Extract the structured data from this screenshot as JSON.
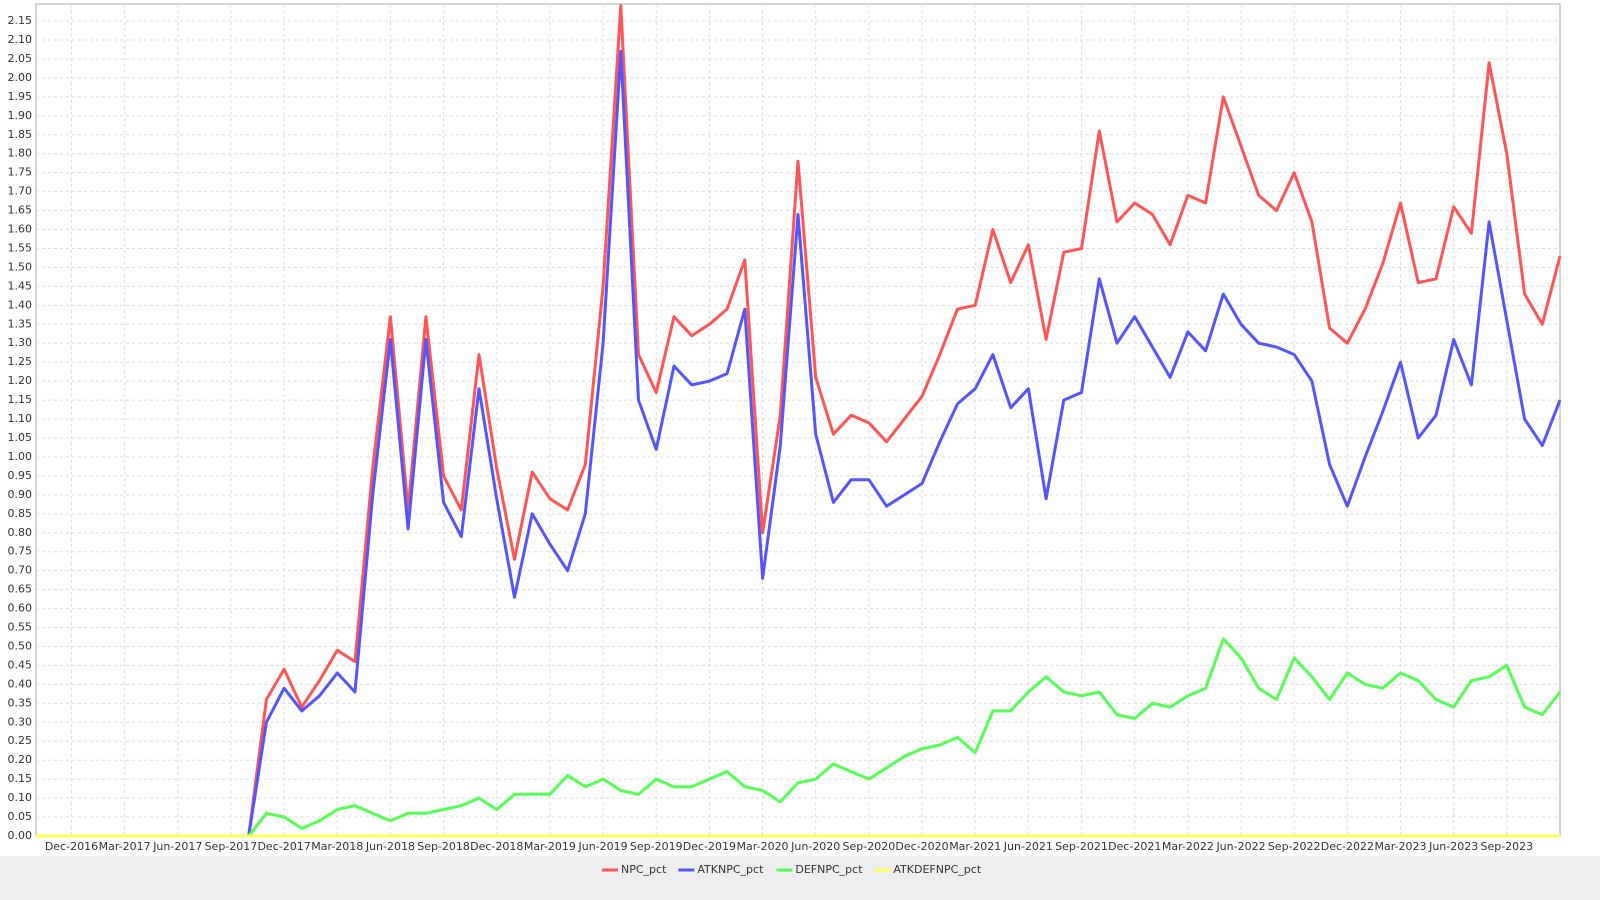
{
  "chart_data": {
    "type": "line",
    "categories": [
      null,
      null,
      "Dec-2016",
      null,
      null,
      "Mar-2017",
      null,
      null,
      "Jun-2017",
      null,
      null,
      "Sep-2017",
      null,
      null,
      "Dec-2017",
      null,
      null,
      "Mar-2018",
      null,
      null,
      "Jun-2018",
      null,
      null,
      "Sep-2018",
      null,
      null,
      "Dec-2018",
      null,
      null,
      "Mar-2019",
      null,
      null,
      "Jun-2019",
      null,
      null,
      "Sep-2019",
      null,
      null,
      "Dec-2019",
      null,
      null,
      "Mar-2020",
      null,
      null,
      "Jun-2020",
      null,
      null,
      "Sep-2020",
      null,
      null,
      "Dec-2020",
      null,
      null,
      "Mar-2021",
      null,
      null,
      "Jun-2021",
      null,
      null,
      "Sep-2021",
      null,
      null,
      "Dec-2021",
      null,
      null,
      "Mar-2022",
      null,
      null,
      "Jun-2022",
      null,
      null,
      "Sep-2022",
      null,
      null,
      "Dec-2022",
      null,
      null,
      "Mar-2023",
      null,
      null,
      "Jun-2023",
      null,
      null,
      "Sep-2023",
      null,
      null,
      null
    ],
    "series": [
      {
        "name": "NPC_pct",
        "color": "#ff5555",
        "values": [
          0,
          0,
          0,
          0,
          0,
          0,
          0,
          0,
          0,
          0,
          0,
          0,
          0,
          0.36,
          0.44,
          0.34,
          0.41,
          0.49,
          0.46,
          0.97,
          1.37,
          0.86,
          1.37,
          0.95,
          0.86,
          1.27,
          0.97,
          0.73,
          0.96,
          0.89,
          0.86,
          0.98,
          1.45,
          2.19,
          1.27,
          1.17,
          1.37,
          1.32,
          1.35,
          1.39,
          1.52,
          0.8,
          1.11,
          1.78,
          1.21,
          1.06,
          1.11,
          1.09,
          1.04,
          1.1,
          1.16,
          1.27,
          1.39,
          1.4,
          1.6,
          1.46,
          1.56,
          1.31,
          1.54,
          1.55,
          1.86,
          1.62,
          1.67,
          1.64,
          1.56,
          1.69,
          1.67,
          1.95,
          1.82,
          1.69,
          1.65,
          1.75,
          1.62,
          1.34,
          1.3,
          1.39,
          1.51,
          1.67,
          1.46,
          1.47,
          1.66,
          1.59,
          2.04,
          1.8,
          1.43,
          1.35,
          1.53
        ]
      },
      {
        "name": "ATKNPC_pct",
        "color": "#5555ff",
        "values": [
          0,
          0,
          0,
          0,
          0,
          0,
          0,
          0,
          0,
          0,
          0,
          0,
          0,
          0.3,
          0.39,
          0.33,
          0.37,
          0.43,
          0.38,
          0.9,
          1.31,
          0.81,
          1.31,
          0.88,
          0.79,
          1.18,
          0.89,
          0.63,
          0.85,
          0.77,
          0.7,
          0.85,
          1.3,
          2.07,
          1.15,
          1.02,
          1.24,
          1.19,
          1.2,
          1.22,
          1.39,
          0.68,
          1.03,
          1.64,
          1.06,
          0.88,
          0.94,
          0.94,
          0.87,
          0.9,
          0.93,
          1.04,
          1.14,
          1.18,
          1.27,
          1.13,
          1.18,
          0.89,
          1.15,
          1.17,
          1.47,
          1.3,
          1.37,
          1.29,
          1.21,
          1.33,
          1.28,
          1.43,
          1.35,
          1.3,
          1.29,
          1.27,
          1.2,
          0.98,
          0.87,
          1.0,
          1.12,
          1.25,
          1.05,
          1.11,
          1.31,
          1.19,
          1.62,
          1.36,
          1.1,
          1.03,
          1.15
        ]
      },
      {
        "name": "DEFNPC_pct",
        "color": "#55ff55",
        "values": [
          0,
          0,
          0,
          0,
          0,
          0,
          0,
          0,
          0,
          0,
          0,
          0,
          0,
          0.06,
          0.05,
          0.02,
          0.04,
          0.07,
          0.08,
          0.06,
          0.04,
          0.06,
          0.06,
          0.07,
          0.08,
          0.1,
          0.07,
          0.11,
          0.11,
          0.11,
          0.16,
          0.13,
          0.15,
          0.12,
          0.11,
          0.15,
          0.13,
          0.13,
          0.15,
          0.17,
          0.13,
          0.12,
          0.09,
          0.14,
          0.15,
          0.19,
          0.17,
          0.15,
          0.18,
          0.21,
          0.23,
          0.24,
          0.26,
          0.22,
          0.33,
          0.33,
          0.38,
          0.42,
          0.38,
          0.37,
          0.38,
          0.32,
          0.31,
          0.35,
          0.34,
          0.37,
          0.39,
          0.52,
          0.47,
          0.39,
          0.36,
          0.47,
          0.42,
          0.36,
          0.43,
          0.4,
          0.39,
          0.43,
          0.41,
          0.36,
          0.34,
          0.41,
          0.42,
          0.45,
          0.34,
          0.32,
          0.38
        ]
      },
      {
        "name": "ATKDEFNPC_pct",
        "color": "#ffff55",
        "values": [
          0,
          0,
          0,
          0,
          0,
          0,
          0,
          0,
          0,
          0,
          0,
          0,
          0,
          0,
          0,
          0,
          0,
          0,
          0,
          0,
          0,
          0,
          0,
          0,
          0,
          0,
          0,
          0,
          0,
          0,
          0,
          0,
          0,
          0,
          0,
          0,
          0,
          0,
          0,
          0,
          0,
          0,
          0,
          0,
          0,
          0,
          0,
          0,
          0,
          0,
          0,
          0,
          0,
          0,
          0,
          0,
          0,
          0,
          0,
          0,
          0,
          0,
          0,
          0,
          0,
          0,
          0,
          0,
          0,
          0,
          0,
          0,
          0,
          0,
          0,
          0,
          0,
          0,
          0,
          0,
          0,
          0,
          0,
          0,
          0,
          0,
          0
        ]
      }
    ],
    "ylim": [
      0,
      2.195
    ],
    "yticks": [
      {
        "value": 0,
        "label": "0.00"
      },
      {
        "value": 0.05,
        "label": "0.05"
      },
      {
        "value": 0.1,
        "label": "0.10"
      },
      {
        "value": 0.15,
        "label": "0.15"
      },
      {
        "value": 0.2,
        "label": "0.20"
      },
      {
        "value": 0.25,
        "label": "0.25"
      },
      {
        "value": 0.3,
        "label": "0.30"
      },
      {
        "value": 0.35,
        "label": "0.35"
      },
      {
        "value": 0.4,
        "label": "0.40"
      },
      {
        "value": 0.45,
        "label": "0.45"
      },
      {
        "value": 0.5,
        "label": "0.50"
      },
      {
        "value": 0.55,
        "label": "0.55"
      },
      {
        "value": 0.6,
        "label": "0.60"
      },
      {
        "value": 0.65,
        "label": "0.65"
      },
      {
        "value": 0.7,
        "label": "0.70"
      },
      {
        "value": 0.75,
        "label": "0.75"
      },
      {
        "value": 0.8,
        "label": "0.80"
      },
      {
        "value": 0.85,
        "label": "0.85"
      },
      {
        "value": 0.9,
        "label": "0.90"
      },
      {
        "value": 0.95,
        "label": "0.95"
      },
      {
        "value": 1,
        "label": "1.00"
      },
      {
        "value": 1.05,
        "label": "1.05"
      },
      {
        "value": 1.1,
        "label": "1.10"
      },
      {
        "value": 1.15,
        "label": "1.15"
      },
      {
        "value": 1.2,
        "label": "1.20"
      },
      {
        "value": 1.25,
        "label": "1.25"
      },
      {
        "value": 1.3,
        "label": "1.30"
      },
      {
        "value": 1.35,
        "label": "1.35"
      },
      {
        "value": 1.4,
        "label": "1.40"
      },
      {
        "value": 1.45,
        "label": "1.45"
      },
      {
        "value": 1.5,
        "label": "1.50"
      },
      {
        "value": 1.55,
        "label": "1.55"
      },
      {
        "value": 1.6,
        "label": "1.60"
      },
      {
        "value": 1.65,
        "label": "1.65"
      },
      {
        "value": 1.7,
        "label": "1.70"
      },
      {
        "value": 1.75,
        "label": "1.75"
      },
      {
        "value": 1.8,
        "label": "1.80"
      },
      {
        "value": 1.85,
        "label": "1.85"
      },
      {
        "value": 1.9,
        "label": "1.90"
      },
      {
        "value": 1.95,
        "label": "1.95"
      },
      {
        "value": 2,
        "label": "2.00"
      },
      {
        "value": 2.05,
        "label": "2.05"
      },
      {
        "value": 2.1,
        "label": "2.10"
      },
      {
        "value": 2.15,
        "label": "2.15"
      }
    ],
    "grid": true,
    "legend": "bottom"
  }
}
